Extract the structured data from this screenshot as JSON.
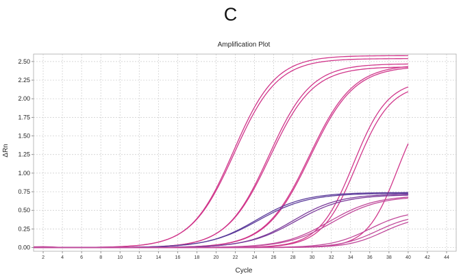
{
  "panel_letter": "C",
  "chart_data": {
    "type": "line",
    "title": "Amplification Plot",
    "xlabel": "Cycle",
    "ylabel": "ΔRn",
    "xlim": [
      1,
      45
    ],
    "ylim": [
      -0.05,
      2.6
    ],
    "xticks": [
      2,
      4,
      6,
      8,
      10,
      12,
      14,
      16,
      18,
      20,
      22,
      24,
      26,
      28,
      30,
      32,
      34,
      36,
      38,
      40,
      42,
      44
    ],
    "yticks": [
      "0.00",
      "0.25",
      "0.50",
      "0.75",
      "1.00",
      "1.25",
      "1.50",
      "1.75",
      "2.00",
      "2.25",
      "2.50"
    ],
    "grid": true,
    "colors": {
      "magenta": "#d0358a",
      "pink": "#d06aa8",
      "purple": "#5a3a9a"
    },
    "series": [
      {
        "color": "#d0358a",
        "plateau": 2.58,
        "midpoint": 21.8,
        "slope": 2.2
      },
      {
        "color": "#d0358a",
        "plateau": 2.54,
        "midpoint": 21.9,
        "slope": 2.25
      },
      {
        "color": "#d0358a",
        "plateau": 2.47,
        "midpoint": 25.5,
        "slope": 2.2
      },
      {
        "color": "#d0358a",
        "plateau": 2.43,
        "midpoint": 25.6,
        "slope": 2.25
      },
      {
        "color": "#d0358a",
        "plateau": 2.46,
        "midpoint": 29.7,
        "slope": 2.3
      },
      {
        "color": "#d0358a",
        "plateau": 2.44,
        "midpoint": 29.8,
        "slope": 2.3
      },
      {
        "color": "#d0358a",
        "plateau": 2.25,
        "midpoint": 34.3,
        "slope": 1.8
      },
      {
        "color": "#d0358a",
        "plateau": 2.2,
        "midpoint": 34.6,
        "slope": 1.8
      },
      {
        "color": "#d0358a",
        "plateau": 2.1,
        "midpoint": 38.9,
        "slope": 1.6
      },
      {
        "color": "#5a3a9a",
        "plateau": 0.74,
        "midpoint": 24.2,
        "slope": 2.5
      },
      {
        "color": "#5a3a9a",
        "plateau": 0.73,
        "midpoint": 24.4,
        "slope": 2.6
      },
      {
        "color": "#7a3a9a",
        "plateau": 0.72,
        "midpoint": 28.0,
        "slope": 2.4
      },
      {
        "color": "#7a3a9a",
        "plateau": 0.71,
        "midpoint": 28.3,
        "slope": 2.5
      },
      {
        "color": "#c0489a",
        "plateau": 0.7,
        "midpoint": 31.8,
        "slope": 2.4
      },
      {
        "color": "#c0489a",
        "plateau": 0.69,
        "midpoint": 32.2,
        "slope": 2.4
      },
      {
        "color": "#c0489a",
        "plateau": 0.5,
        "midpoint": 36.0,
        "slope": 2.0
      },
      {
        "color": "#c0489a",
        "plateau": 0.45,
        "midpoint": 36.8,
        "slope": 1.9
      },
      {
        "color": "#c0489a",
        "plateau": 0.42,
        "midpoint": 37.4,
        "slope": 1.8
      }
    ]
  }
}
